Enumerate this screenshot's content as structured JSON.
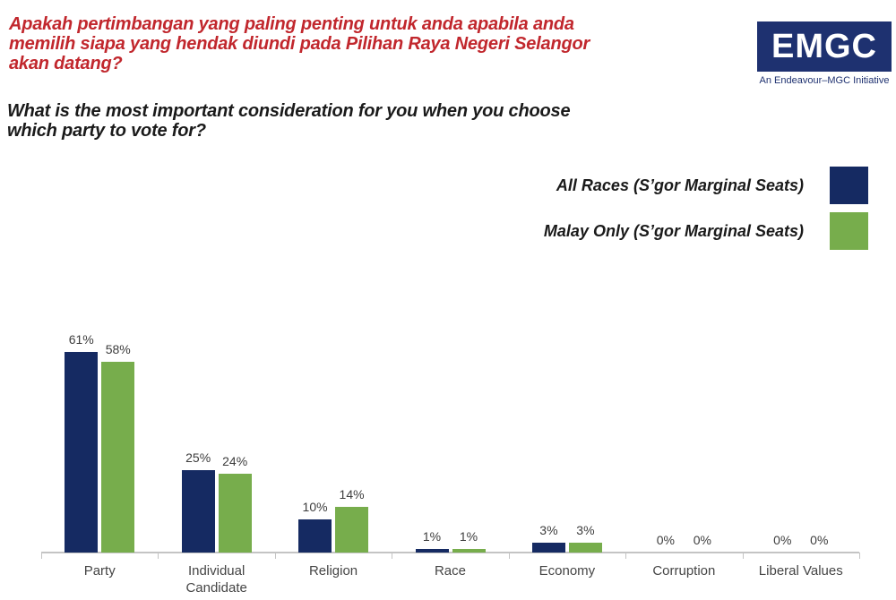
{
  "header": {
    "malay_question_lines": [
      "Apakah pertimbangan yang paling penting untuk anda apabila anda",
      "memilih siapa yang hendak diundi pada Pilihan Raya Negeri Selangor",
      "akan datang?"
    ],
    "english_question_lines": [
      "What is the most important consideration for you when you choose",
      "which party to vote for?"
    ],
    "malay_color": "#c1272d",
    "english_color": "#1a1a1a"
  },
  "logo": {
    "text": "EMGC",
    "caption": "An Endeavour–MGC Initiative",
    "bg_color": "#1e3170",
    "caption_color": "#1e3170"
  },
  "chart_data": {
    "type": "bar",
    "categories": [
      "Party",
      "Individual Candidate",
      "Religion",
      "Race",
      "Economy",
      "Corruption",
      "Liberal Values"
    ],
    "series": [
      {
        "name": "All Races (S’gor Marginal Seats)",
        "color": "#152a62",
        "values": [
          61,
          25,
          10,
          1,
          3,
          0,
          0
        ]
      },
      {
        "name": "Malay Only (S’gor Marginal Seats)",
        "color": "#77ad4c",
        "values": [
          58,
          24,
          14,
          1,
          3,
          0,
          0
        ]
      }
    ],
    "value_suffix": "%",
    "data_labels": true,
    "grid": false,
    "ylim": [
      0,
      70
    ],
    "legend_position": "top-right",
    "axis_color": "#c4c4c4",
    "label_color": "#454545"
  }
}
